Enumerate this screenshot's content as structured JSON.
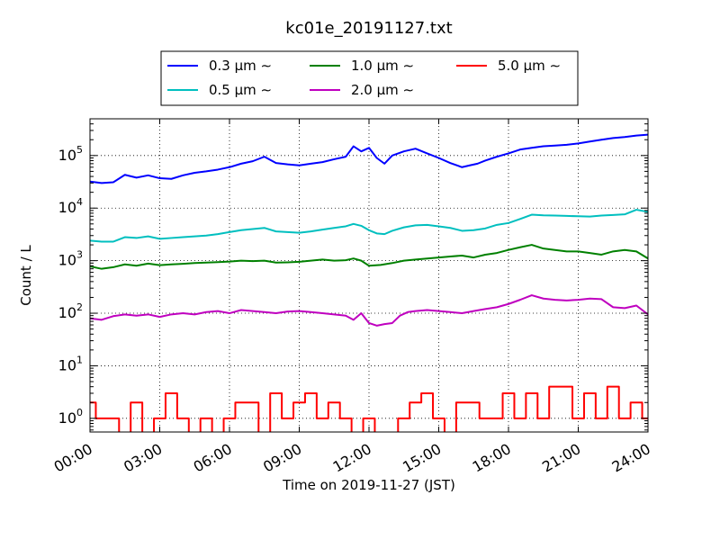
{
  "chart_data": {
    "type": "line",
    "title": "kc01e_20191127.txt",
    "xlabel": "Time on 2019-11-27 (JST)",
    "ylabel": "Count / L",
    "yscale": "log",
    "xlim": [
      "00:00",
      "24:00"
    ],
    "ylim": [
      0.55,
      500000
    ],
    "grid": true,
    "legend_position": "top",
    "x_ticks": [
      "00:00",
      "03:00",
      "06:00",
      "09:00",
      "12:00",
      "15:00",
      "18:00",
      "21:00",
      "24:00"
    ],
    "y_ticks": [
      {
        "base": "10",
        "exp": "0"
      },
      {
        "base": "10",
        "exp": "1"
      },
      {
        "base": "10",
        "exp": "2"
      },
      {
        "base": "10",
        "exp": "3"
      },
      {
        "base": "10",
        "exp": "4"
      },
      {
        "base": "10",
        "exp": "5"
      }
    ],
    "legend_suffix": "∼",
    "series": [
      {
        "name": "0.3 μm",
        "color": "#0000ff",
        "x": [
          "00:00",
          "00:30",
          "01:00",
          "01:30",
          "02:00",
          "02:30",
          "03:00",
          "03:30",
          "04:00",
          "04:30",
          "05:00",
          "05:30",
          "06:00",
          "06:30",
          "07:00",
          "07:30",
          "08:00",
          "08:30",
          "09:00",
          "09:30",
          "10:00",
          "10:30",
          "11:00",
          "11:20",
          "11:40",
          "12:00",
          "12:20",
          "12:40",
          "13:00",
          "13:30",
          "14:00",
          "14:30",
          "15:00",
          "15:30",
          "16:00",
          "16:20",
          "16:40",
          "17:00",
          "17:30",
          "18:00",
          "18:30",
          "19:00",
          "19:30",
          "20:00",
          "20:30",
          "21:00",
          "21:30",
          "22:00",
          "22:30",
          "23:00",
          "23:30",
          "24:00"
        ],
        "values": [
          32000,
          30000,
          31000,
          43000,
          38000,
          42000,
          37000,
          36000,
          42000,
          47000,
          50000,
          54000,
          60000,
          70000,
          78000,
          95000,
          72000,
          68000,
          65000,
          70000,
          75000,
          85000,
          95000,
          150000,
          120000,
          140000,
          90000,
          70000,
          100000,
          120000,
          135000,
          110000,
          90000,
          72000,
          60000,
          65000,
          70000,
          80000,
          95000,
          110000,
          130000,
          140000,
          150000,
          155000,
          160000,
          170000,
          185000,
          200000,
          215000,
          225000,
          240000,
          250000
        ]
      },
      {
        "name": "0.5 μm",
        "color": "#00bfbf",
        "x": [
          "00:00",
          "00:30",
          "01:00",
          "01:30",
          "02:00",
          "02:30",
          "03:00",
          "03:30",
          "04:00",
          "04:30",
          "05:00",
          "05:30",
          "06:00",
          "06:30",
          "07:00",
          "07:30",
          "08:00",
          "08:30",
          "09:00",
          "09:30",
          "10:00",
          "10:30",
          "11:00",
          "11:20",
          "11:40",
          "12:00",
          "12:20",
          "12:40",
          "13:00",
          "13:30",
          "14:00",
          "14:30",
          "15:00",
          "15:30",
          "16:00",
          "16:30",
          "17:00",
          "17:30",
          "18:00",
          "18:30",
          "19:00",
          "19:30",
          "20:00",
          "20:30",
          "21:00",
          "21:30",
          "22:00",
          "22:30",
          "23:00",
          "23:30",
          "24:00"
        ],
        "values": [
          2400,
          2300,
          2300,
          2800,
          2700,
          2900,
          2600,
          2700,
          2800,
          2900,
          3000,
          3200,
          3500,
          3800,
          4000,
          4200,
          3600,
          3500,
          3400,
          3600,
          3900,
          4200,
          4500,
          5000,
          4600,
          3800,
          3300,
          3200,
          3700,
          4300,
          4700,
          4800,
          4500,
          4200,
          3700,
          3800,
          4100,
          4800,
          5200,
          6200,
          7500,
          7300,
          7200,
          7100,
          7000,
          6900,
          7200,
          7400,
          7600,
          9300,
          8500
        ]
      },
      {
        "name": "1.0 μm",
        "color": "#008000",
        "x": [
          "00:00",
          "00:30",
          "01:00",
          "01:30",
          "02:00",
          "02:30",
          "03:00",
          "03:30",
          "04:00",
          "04:30",
          "05:00",
          "05:30",
          "06:00",
          "06:30",
          "07:00",
          "07:30",
          "08:00",
          "08:30",
          "09:00",
          "09:30",
          "10:00",
          "10:30",
          "11:00",
          "11:20",
          "11:40",
          "12:00",
          "12:30",
          "13:00",
          "13:30",
          "14:00",
          "14:30",
          "15:00",
          "15:30",
          "16:00",
          "16:30",
          "17:00",
          "17:30",
          "18:00",
          "18:30",
          "19:00",
          "19:30",
          "20:00",
          "20:30",
          "21:00",
          "21:30",
          "22:00",
          "22:30",
          "23:00",
          "23:30",
          "24:00"
        ],
        "values": [
          780,
          700,
          750,
          850,
          800,
          880,
          820,
          850,
          870,
          900,
          920,
          940,
          960,
          1000,
          980,
          1000,
          920,
          930,
          950,
          1000,
          1050,
          1000,
          1020,
          1100,
          1000,
          800,
          830,
          900,
          1000,
          1050,
          1100,
          1150,
          1200,
          1250,
          1150,
          1300,
          1400,
          1600,
          1800,
          2000,
          1700,
          1600,
          1500,
          1500,
          1400,
          1300,
          1500,
          1600,
          1500,
          1100
        ]
      },
      {
        "name": "2.0 μm",
        "color": "#bf00bf",
        "x": [
          "00:00",
          "00:30",
          "01:00",
          "01:30",
          "02:00",
          "02:30",
          "03:00",
          "03:30",
          "04:00",
          "04:30",
          "05:00",
          "05:30",
          "06:00",
          "06:30",
          "07:00",
          "07:30",
          "08:00",
          "08:30",
          "09:00",
          "09:30",
          "10:00",
          "10:30",
          "11:00",
          "11:20",
          "11:40",
          "12:00",
          "12:20",
          "12:40",
          "13:00",
          "13:20",
          "13:40",
          "14:00",
          "14:30",
          "15:00",
          "15:30",
          "16:00",
          "16:30",
          "17:00",
          "17:30",
          "18:00",
          "18:30",
          "19:00",
          "19:30",
          "20:00",
          "20:30",
          "21:00",
          "21:30",
          "22:00",
          "22:30",
          "23:00",
          "23:30",
          "24:00"
        ],
        "values": [
          80,
          75,
          88,
          95,
          90,
          95,
          85,
          95,
          100,
          95,
          105,
          110,
          100,
          115,
          110,
          105,
          100,
          108,
          110,
          105,
          100,
          95,
          90,
          75,
          100,
          65,
          58,
          62,
          65,
          90,
          105,
          110,
          115,
          110,
          105,
          100,
          110,
          120,
          130,
          150,
          180,
          220,
          190,
          180,
          175,
          180,
          190,
          185,
          130,
          125,
          140,
          95
        ]
      },
      {
        "name": "5.0 μm",
        "color": "#ff0000",
        "x": [
          "00:00",
          "00:30",
          "01:00",
          "01:30",
          "02:00",
          "02:30",
          "03:00",
          "03:30",
          "04:00",
          "04:30",
          "05:00",
          "05:30",
          "06:00",
          "06:30",
          "07:00",
          "07:30",
          "08:00",
          "08:30",
          "09:00",
          "09:30",
          "10:00",
          "10:30",
          "11:00",
          "11:30",
          "12:00",
          "12:30",
          "13:00",
          "13:30",
          "14:00",
          "14:30",
          "15:00",
          "15:30",
          "16:00",
          "16:30",
          "17:00",
          "17:30",
          "18:00",
          "18:30",
          "19:00",
          "19:30",
          "20:00",
          "20:30",
          "21:00",
          "21:30",
          "22:00",
          "22:30",
          "23:00",
          "23:30",
          "24:00"
        ],
        "values": [
          2,
          1,
          1,
          0.4,
          2,
          0.4,
          1,
          3,
          1,
          0.4,
          1,
          0.4,
          1,
          2,
          2,
          0.4,
          3,
          1,
          2,
          3,
          1,
          2,
          1,
          0.4,
          1,
          0.4,
          0.4,
          1,
          2,
          3,
          1,
          0.4,
          2,
          2,
          1,
          1,
          3,
          1,
          3,
          1,
          4,
          4,
          1,
          3,
          1,
          4,
          1,
          2,
          1
        ]
      }
    ]
  }
}
